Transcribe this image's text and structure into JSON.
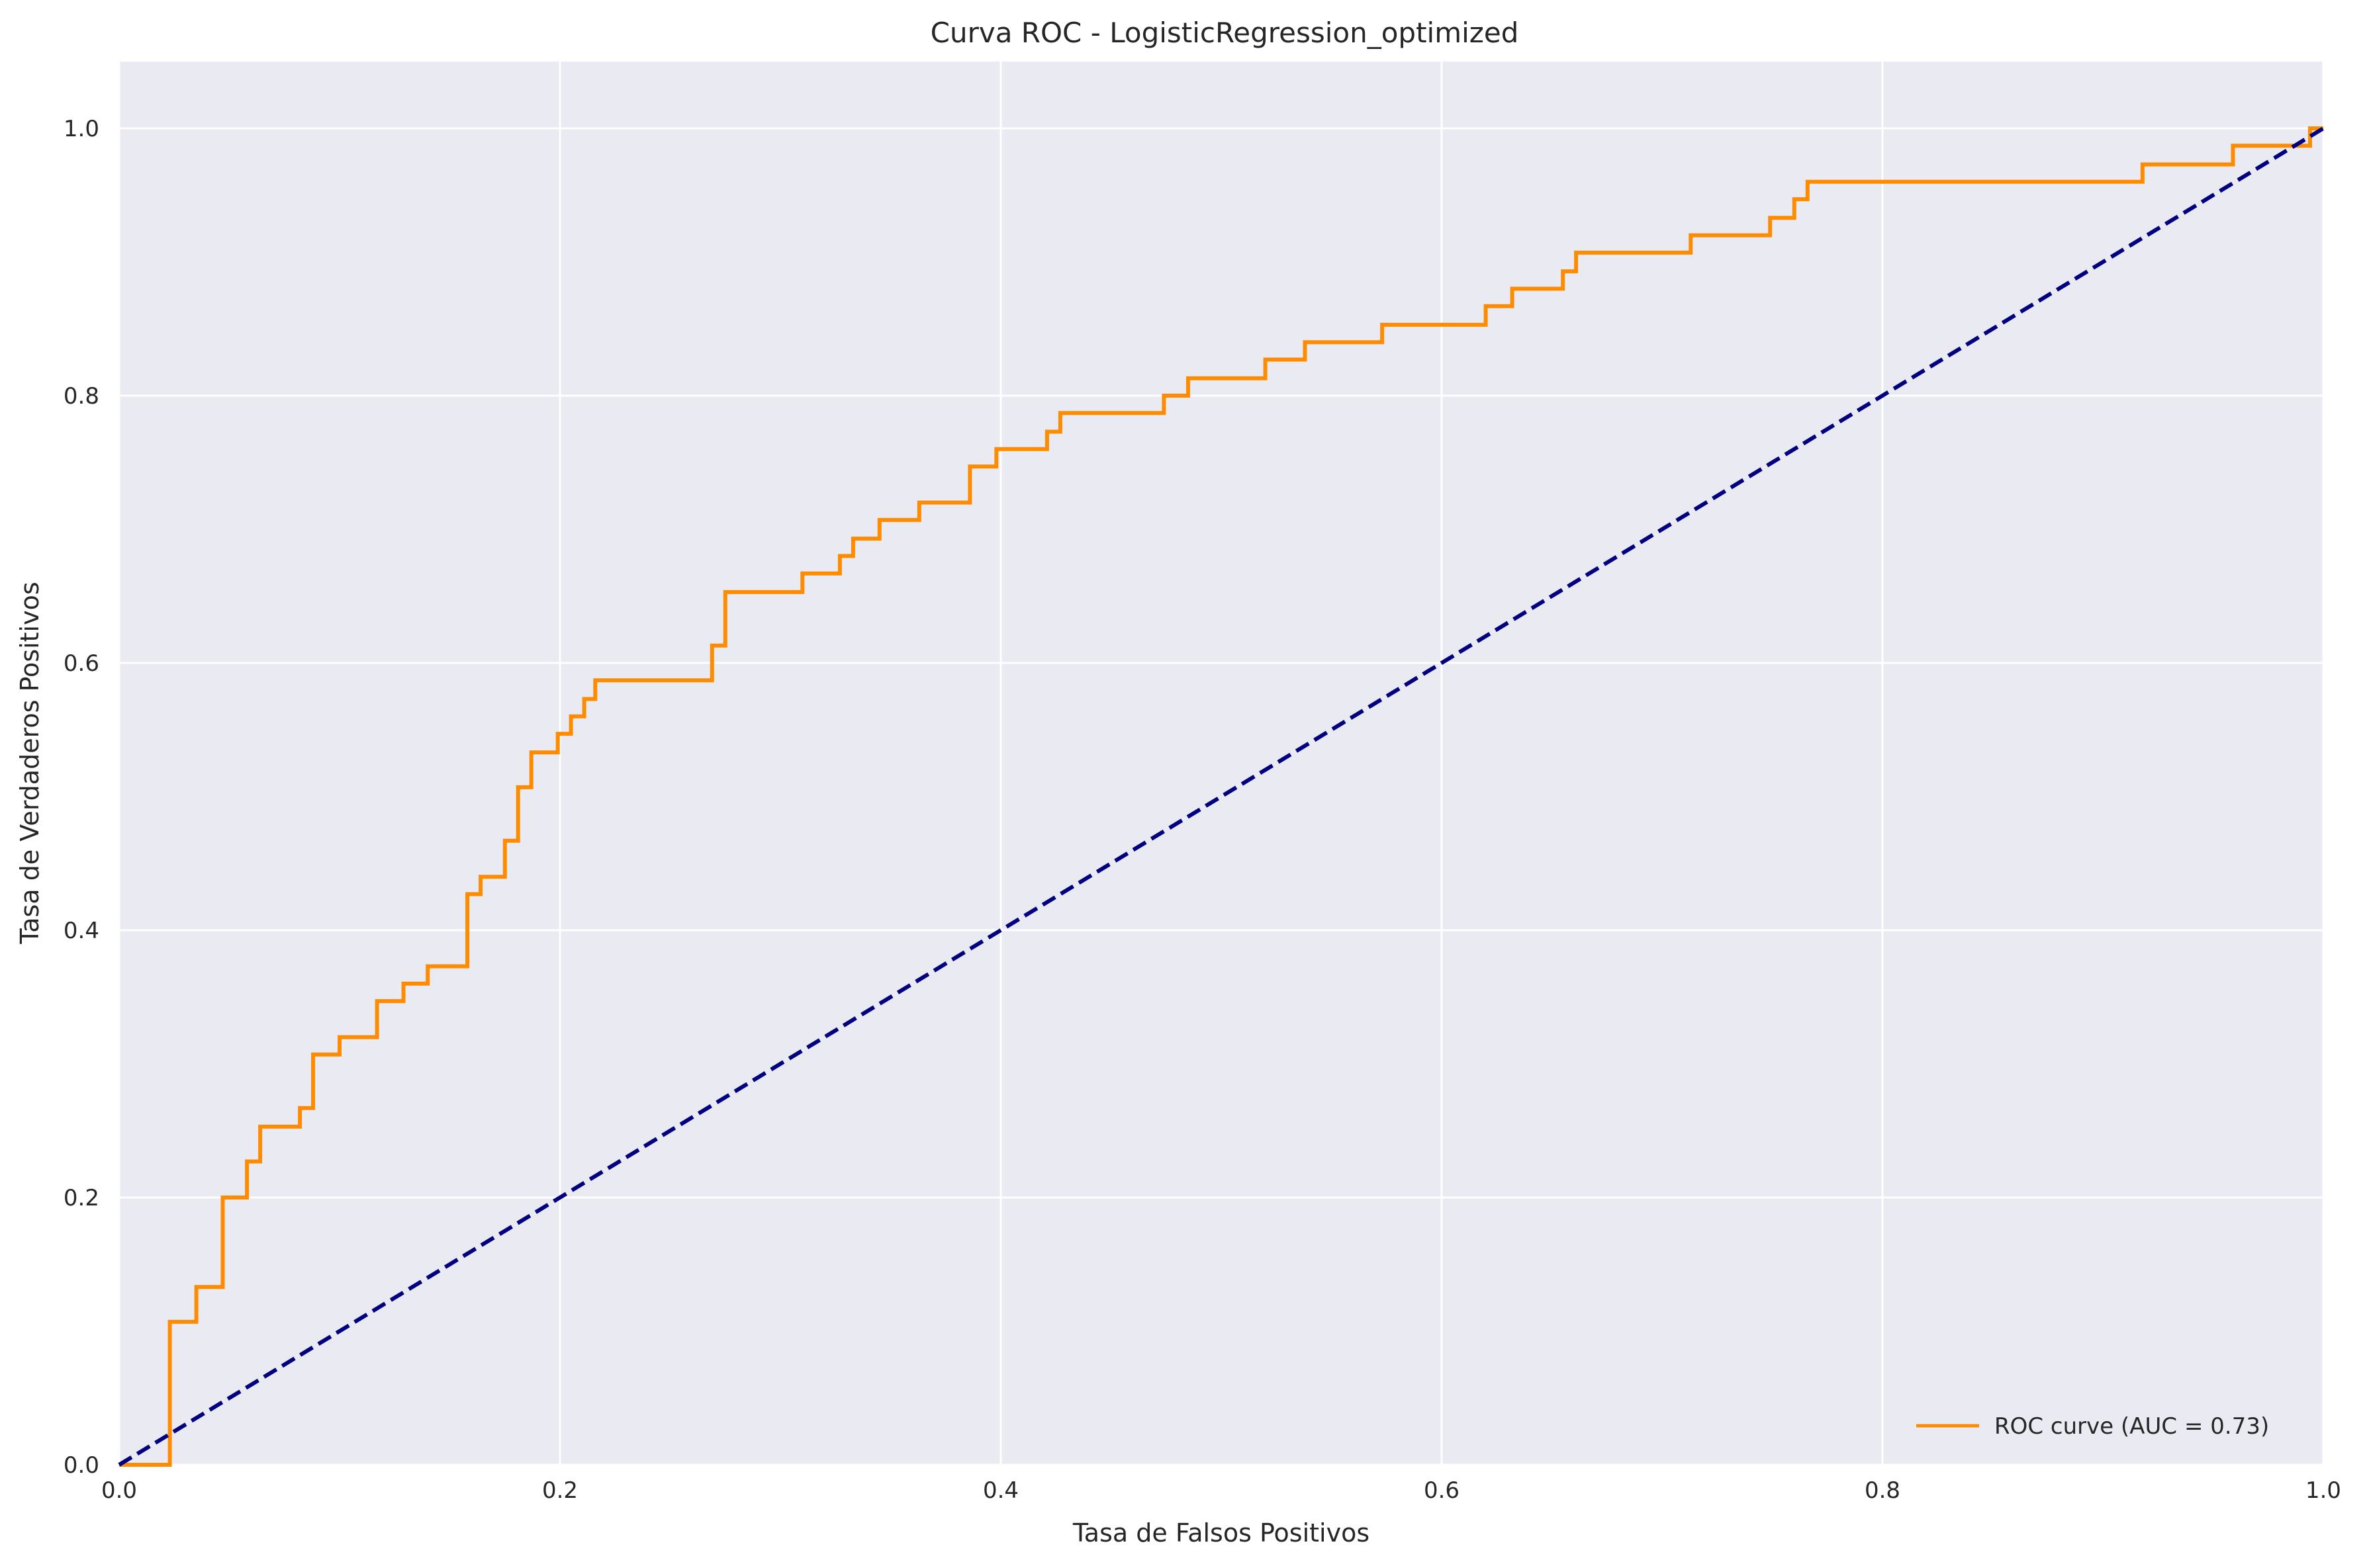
{
  "chart_data": {
    "type": "line",
    "title": "Curva ROC - LogisticRegression_optimized",
    "xlabel": "Tasa de Falsos Positivos",
    "ylabel": "Tasa de Verdaderos Positivos",
    "xlim": [
      0.0,
      1.0
    ],
    "ylim": [
      0.0,
      1.05
    ],
    "xticks": [
      0.0,
      0.2,
      0.4,
      0.6,
      0.8,
      1.0
    ],
    "xtick_labels": [
      "0.0",
      "0.2",
      "0.4",
      "0.6",
      "0.8",
      "1.0"
    ],
    "yticks": [
      0.0,
      0.2,
      0.4,
      0.6,
      0.8,
      1.0
    ],
    "ytick_labels": [
      "0.0",
      "0.2",
      "0.4",
      "0.6",
      "0.8",
      "1.0"
    ],
    "grid": true,
    "legend_position": "lower-right",
    "series": [
      {
        "name": "ROC curve (AUC = 0.73)",
        "color": "#ff8c00",
        "style": "solid",
        "x": [
          0.0,
          0.023,
          0.023,
          0.035,
          0.035,
          0.047,
          0.047,
          0.058,
          0.058,
          0.064,
          0.064,
          0.082,
          0.082,
          0.088,
          0.088,
          0.1,
          0.1,
          0.117,
          0.117,
          0.129,
          0.129,
          0.14,
          0.14,
          0.158,
          0.158,
          0.164,
          0.164,
          0.175,
          0.175,
          0.181,
          0.181,
          0.187,
          0.187,
          0.199,
          0.199,
          0.205,
          0.205,
          0.211,
          0.211,
          0.216,
          0.216,
          0.269,
          0.269,
          0.275,
          0.275,
          0.31,
          0.31,
          0.327,
          0.327,
          0.333,
          0.333,
          0.345,
          0.345,
          0.363,
          0.363,
          0.386,
          0.386,
          0.398,
          0.398,
          0.421,
          0.421,
          0.427,
          0.427,
          0.474,
          0.474,
          0.485,
          0.485,
          0.52,
          0.52,
          0.538,
          0.538,
          0.573,
          0.573,
          0.62,
          0.62,
          0.632,
          0.632,
          0.655,
          0.655,
          0.661,
          0.661,
          0.713,
          0.713,
          0.749,
          0.749,
          0.76,
          0.76,
          0.766,
          0.766,
          0.918,
          0.918,
          0.959,
          0.959,
          0.994,
          0.994,
          1.0
        ],
        "y": [
          0.0,
          0.0,
          0.107,
          0.107,
          0.133,
          0.133,
          0.2,
          0.2,
          0.227,
          0.227,
          0.253,
          0.253,
          0.267,
          0.267,
          0.307,
          0.307,
          0.32,
          0.32,
          0.347,
          0.347,
          0.36,
          0.36,
          0.373,
          0.373,
          0.427,
          0.427,
          0.44,
          0.44,
          0.467,
          0.467,
          0.507,
          0.507,
          0.533,
          0.533,
          0.547,
          0.547,
          0.56,
          0.56,
          0.573,
          0.573,
          0.587,
          0.587,
          0.613,
          0.613,
          0.653,
          0.653,
          0.667,
          0.667,
          0.68,
          0.68,
          0.693,
          0.693,
          0.707,
          0.707,
          0.72,
          0.72,
          0.747,
          0.747,
          0.76,
          0.76,
          0.773,
          0.773,
          0.787,
          0.787,
          0.8,
          0.8,
          0.813,
          0.813,
          0.827,
          0.827,
          0.84,
          0.84,
          0.853,
          0.853,
          0.867,
          0.867,
          0.88,
          0.88,
          0.893,
          0.893,
          0.907,
          0.907,
          0.92,
          0.92,
          0.933,
          0.933,
          0.947,
          0.947,
          0.96,
          0.96,
          0.973,
          0.973,
          0.987,
          0.987,
          1.0,
          1.0
        ]
      },
      {
        "name": "",
        "color": "#000080",
        "style": "dashed",
        "x": [
          0.0,
          1.0
        ],
        "y": [
          0.0,
          1.0
        ]
      }
    ]
  }
}
